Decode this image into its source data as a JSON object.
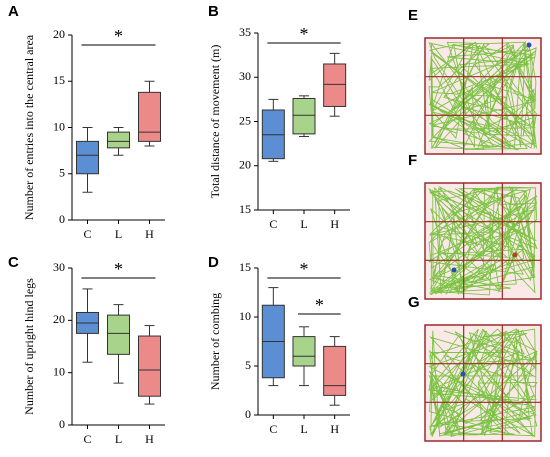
{
  "chart_data": [
    {
      "type": "box",
      "panel_label": "A",
      "ylabel": "Number of entries into the central area",
      "categories": [
        "C",
        "L",
        "H"
      ],
      "colors": [
        "#5b8ed3",
        "#a8d38a",
        "#ec8a8a"
      ],
      "boxes": [
        {
          "min": 3,
          "q1": 5,
          "median": 7,
          "q3": 8.5,
          "max": 10
        },
        {
          "min": 7,
          "q1": 7.8,
          "median": 8.5,
          "q3": 9.5,
          "max": 10
        },
        {
          "min": 8,
          "q1": 8.5,
          "median": 9.5,
          "q3": 13.8,
          "max": 15
        }
      ],
      "ylim": [
        0,
        20
      ],
      "yticks": [
        0,
        5,
        10,
        15,
        20
      ],
      "significance": [
        {
          "label": "*",
          "groups": [
            "C",
            "H"
          ]
        }
      ]
    },
    {
      "type": "box",
      "panel_label": "B",
      "ylabel": "Total distance of movement (m)",
      "categories": [
        "C",
        "L",
        "H"
      ],
      "colors": [
        "#5b8ed3",
        "#a8d38a",
        "#ec8a8a"
      ],
      "boxes": [
        {
          "min": 20.5,
          "q1": 20.8,
          "median": 23.5,
          "q3": 26.3,
          "max": 27.5
        },
        {
          "min": 23.3,
          "q1": 23.6,
          "median": 25.7,
          "q3": 27.6,
          "max": 27.9
        },
        {
          "min": 25.6,
          "q1": 26.7,
          "median": 29.2,
          "q3": 31.5,
          "max": 32.7
        }
      ],
      "ylim": [
        15,
        35
      ],
      "yticks": [
        15,
        20,
        25,
        30,
        35
      ],
      "significance": [
        {
          "label": "*",
          "groups": [
            "C",
            "H"
          ]
        }
      ]
    },
    {
      "type": "box",
      "panel_label": "C",
      "ylabel": "Number of upright hind legs",
      "categories": [
        "C",
        "L",
        "H"
      ],
      "colors": [
        "#5b8ed3",
        "#a8d38a",
        "#ec8a8a"
      ],
      "boxes": [
        {
          "min": 12,
          "q1": 17.5,
          "median": 19.5,
          "q3": 21.5,
          "max": 26
        },
        {
          "min": 8,
          "q1": 13.5,
          "median": 17.5,
          "q3": 21,
          "max": 23
        },
        {
          "min": 4,
          "q1": 5.5,
          "median": 10.5,
          "q3": 17,
          "max": 19
        }
      ],
      "ylim": [
        0,
        30
      ],
      "yticks": [
        0,
        10,
        20,
        30
      ],
      "significance": [
        {
          "label": "*",
          "groups": [
            "C",
            "H"
          ]
        }
      ]
    },
    {
      "type": "box",
      "panel_label": "D",
      "ylabel": "Number of combing",
      "categories": [
        "C",
        "L",
        "H"
      ],
      "colors": [
        "#5b8ed3",
        "#a8d38a",
        "#ec8a8a"
      ],
      "boxes": [
        {
          "min": 3,
          "q1": 3.8,
          "median": 7.5,
          "q3": 11.2,
          "max": 13
        },
        {
          "min": 3,
          "q1": 5,
          "median": 6,
          "q3": 8,
          "max": 9
        },
        {
          "min": 1,
          "q1": 2,
          "median": 3,
          "q3": 7,
          "max": 8
        }
      ],
      "ylim": [
        0,
        15
      ],
      "yticks": [
        0,
        5,
        10,
        15
      ],
      "significance": [
        {
          "label": "*",
          "groups": [
            "C",
            "H"
          ]
        },
        {
          "label": "*",
          "groups": [
            "L",
            "H"
          ]
        }
      ]
    }
  ],
  "track_panels": [
    "E",
    "F",
    "G"
  ]
}
